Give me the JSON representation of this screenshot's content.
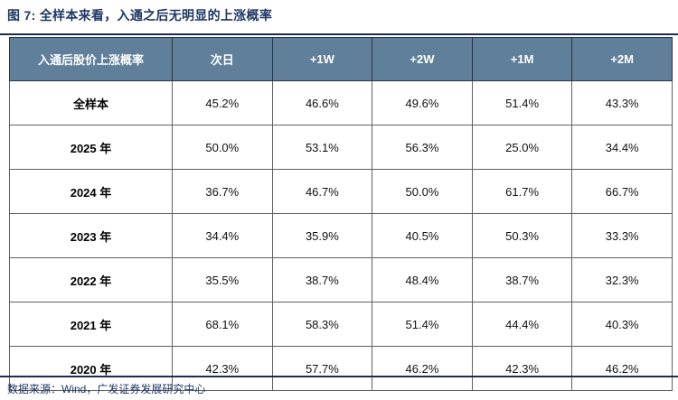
{
  "title": "图 7: 全样本来看，入通之后无明显的上涨概率",
  "source": "数据来源：Wind，广发证券发展研究中心",
  "colors": {
    "header_bg": "#5f7f9a",
    "header_text": "#ffffff",
    "accent": "#1f3864",
    "rule": "#1c2e4d",
    "grid_border": "#616161"
  },
  "table": {
    "headers": [
      "入通后股价上涨概率",
      "次日",
      "+1W",
      "+2W",
      "+1M",
      "+2M"
    ],
    "rows": [
      {
        "label": "全样本",
        "values": [
          "45.2%",
          "46.6%",
          "49.6%",
          "51.4%",
          "43.3%"
        ]
      },
      {
        "label": "2025 年",
        "values": [
          "50.0%",
          "53.1%",
          "56.3%",
          "25.0%",
          "34.4%"
        ]
      },
      {
        "label": "2024 年",
        "values": [
          "36.7%",
          "46.7%",
          "50.0%",
          "61.7%",
          "66.7%"
        ]
      },
      {
        "label": "2023 年",
        "values": [
          "34.4%",
          "35.9%",
          "40.5%",
          "50.3%",
          "33.3%"
        ]
      },
      {
        "label": "2022 年",
        "values": [
          "35.5%",
          "38.7%",
          "48.4%",
          "38.7%",
          "32.3%"
        ]
      },
      {
        "label": "2021 年",
        "values": [
          "68.1%",
          "58.3%",
          "51.4%",
          "44.4%",
          "40.3%"
        ]
      },
      {
        "label": "2020 年",
        "values": [
          "42.3%",
          "57.7%",
          "46.2%",
          "42.3%",
          "46.2%"
        ]
      }
    ]
  }
}
